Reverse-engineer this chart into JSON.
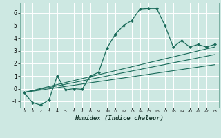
{
  "xlabel": "Humidex (Indice chaleur)",
  "bg_color": "#cde8e2",
  "grid_color": "#b0d8d0",
  "line_color": "#1a6b5a",
  "xlim": [
    -0.5,
    23.5
  ],
  "ylim": [
    -1.5,
    6.8
  ],
  "yticks": [
    -1,
    0,
    1,
    2,
    3,
    4,
    5,
    6
  ],
  "xticks": [
    0,
    1,
    2,
    3,
    4,
    5,
    6,
    7,
    8,
    9,
    10,
    11,
    12,
    13,
    14,
    15,
    16,
    17,
    18,
    19,
    20,
    21,
    22,
    23
  ],
  "series1_x": [
    0,
    1,
    2,
    3,
    4,
    5,
    6,
    7,
    8,
    9,
    10,
    11,
    12,
    13,
    14,
    15,
    16,
    17,
    18,
    19,
    20,
    21,
    22,
    23
  ],
  "series1_y": [
    -0.3,
    -1.1,
    -1.3,
    -0.9,
    1.0,
    -0.1,
    0.0,
    -0.05,
    1.0,
    1.3,
    3.2,
    4.3,
    5.0,
    5.4,
    6.3,
    6.35,
    6.35,
    5.0,
    3.3,
    3.8,
    3.3,
    3.5,
    3.3,
    3.5
  ],
  "series2_x": [
    0,
    23
  ],
  "series2_y": [
    -0.3,
    3.3
  ],
  "series3_x": [
    0,
    23
  ],
  "series3_y": [
    -0.3,
    2.7
  ],
  "series4_x": [
    0,
    23
  ],
  "series4_y": [
    -0.3,
    1.9
  ]
}
